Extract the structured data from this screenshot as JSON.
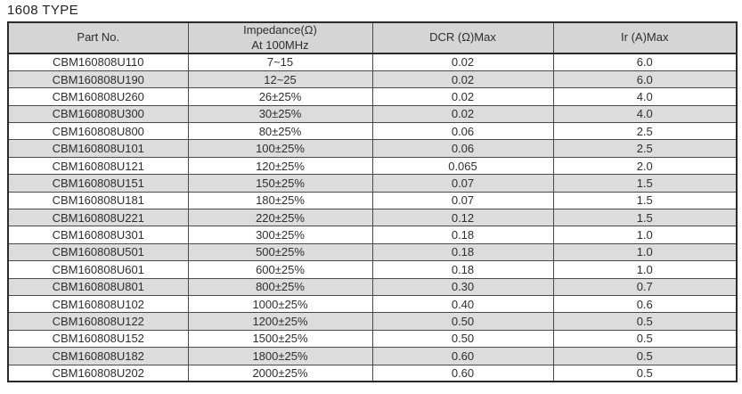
{
  "page": {
    "title": "1608 TYPE"
  },
  "table": {
    "columns": [
      {
        "label": "Part No.",
        "sub": ""
      },
      {
        "label": "Impedance(Ω)",
        "sub": "At 100MHz"
      },
      {
        "label": "DCR (Ω)Max",
        "sub": ""
      },
      {
        "label": "Ir (A)Max",
        "sub": ""
      }
    ],
    "rows": [
      [
        "CBM160808U110",
        "7~15",
        "0.02",
        "6.0"
      ],
      [
        "CBM160808U190",
        "12~25",
        "0.02",
        "6.0"
      ],
      [
        "CBM160808U260",
        "26±25%",
        "0.02",
        "4.0"
      ],
      [
        "CBM160808U300",
        "30±25%",
        "0.02",
        "4.0"
      ],
      [
        "CBM160808U800",
        "80±25%",
        "0.06",
        "2.5"
      ],
      [
        "CBM160808U101",
        "100±25%",
        "0.06",
        "2.5"
      ],
      [
        "CBM160808U121",
        "120±25%",
        "0.065",
        "2.0"
      ],
      [
        "CBM160808U151",
        "150±25%",
        "0.07",
        "1.5"
      ],
      [
        "CBM160808U181",
        "180±25%",
        "0.07",
        "1.5"
      ],
      [
        "CBM160808U221",
        "220±25%",
        "0.12",
        "1.5"
      ],
      [
        "CBM160808U301",
        "300±25%",
        "0.18",
        "1.0"
      ],
      [
        "CBM160808U501",
        "500±25%",
        "0.18",
        "1.0"
      ],
      [
        "CBM160808U601",
        "600±25%",
        "0.18",
        "1.0"
      ],
      [
        "CBM160808U801",
        "800±25%",
        "0.30",
        "0.7"
      ],
      [
        "CBM160808U102",
        "1000±25%",
        "0.40",
        "0.6"
      ],
      [
        "CBM160808U122",
        "1200±25%",
        "0.50",
        "0.5"
      ],
      [
        "CBM160808U152",
        "1500±25%",
        "0.50",
        "0.5"
      ],
      [
        "CBM160808U182",
        "1800±25%",
        "0.60",
        "0.5"
      ],
      [
        "CBM160808U202",
        "2000±25%",
        "0.60",
        "0.5"
      ]
    ]
  },
  "colors": {
    "header_bg": "#d5d5d5",
    "alt_row_bg": "#dcdcdc",
    "row_bg": "#ffffff",
    "grid_line": "#4a4a4a",
    "outer_border": "#2b2b2b",
    "text": "#2e2e2e"
  }
}
